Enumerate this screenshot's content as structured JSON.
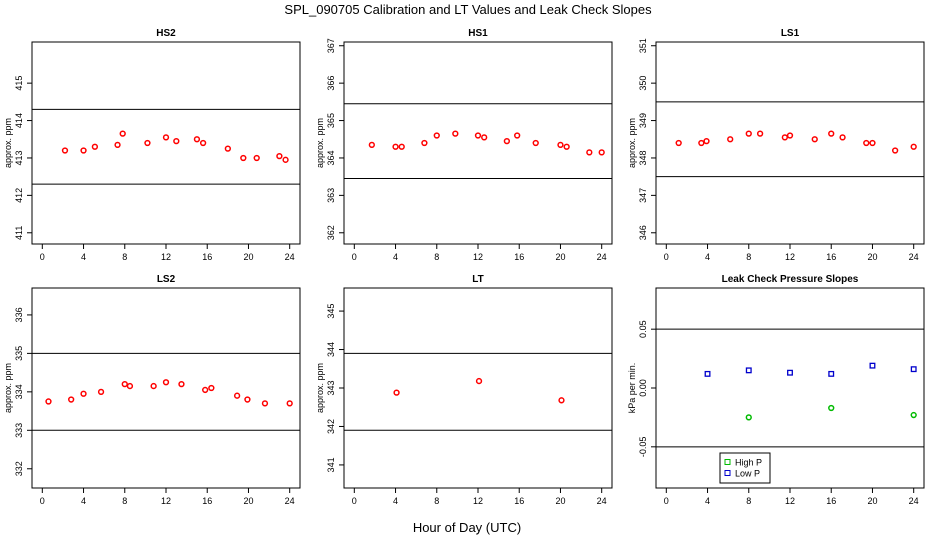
{
  "figure": {
    "title": "SPL_090705  Calibration and LT Values and Leak Check Slopes",
    "xlabel": "Hour of Day (UTC)"
  },
  "colors": {
    "cal": "#ff0000",
    "high": "#00bb00",
    "low": "#0000cc",
    "axis": "#000000"
  },
  "chart_data": [
    {
      "type": "scatter",
      "title": "HS2",
      "ylabel": "approx. ppm",
      "xlim": [
        -1,
        25
      ],
      "ylim": [
        410.7,
        416.1
      ],
      "xticks": [
        0,
        4,
        8,
        12,
        16,
        20,
        24
      ],
      "yticks": [
        411,
        412,
        413,
        414,
        415
      ],
      "hlines": [
        414.3,
        412.3
      ],
      "series": [
        {
          "name": "cal",
          "color": "#ff0000",
          "x": [
            2.2,
            4,
            5.1,
            7.3,
            7.8,
            10.2,
            12,
            13,
            15,
            15.6,
            18,
            19.5,
            20.8,
            23,
            23.6
          ],
          "y": [
            413.2,
            413.2,
            413.3,
            413.35,
            413.65,
            413.4,
            413.55,
            413.45,
            413.5,
            413.4,
            413.25,
            413.0,
            413.0,
            413.05,
            412.95
          ]
        }
      ]
    },
    {
      "type": "scatter",
      "title": "HS1",
      "ylabel": "approx. ppm",
      "xlim": [
        -1,
        25
      ],
      "ylim": [
        361.7,
        367.1
      ],
      "xticks": [
        0,
        4,
        8,
        12,
        16,
        20,
        24
      ],
      "yticks": [
        362,
        363,
        364,
        365,
        366,
        367
      ],
      "hlines": [
        365.45,
        363.45
      ],
      "series": [
        {
          "name": "cal",
          "color": "#ff0000",
          "x": [
            1.7,
            4,
            4.6,
            6.8,
            8,
            9.8,
            12,
            12.6,
            14.8,
            15.8,
            17.6,
            20,
            20.6,
            22.8,
            24
          ],
          "y": [
            364.35,
            364.3,
            364.3,
            364.4,
            364.6,
            364.65,
            364.6,
            364.55,
            364.45,
            364.6,
            364.4,
            364.35,
            364.3,
            364.15,
            364.15
          ]
        }
      ]
    },
    {
      "type": "scatter",
      "title": "LS1",
      "ylabel": "approx. ppm",
      "xlim": [
        -1,
        25
      ],
      "ylim": [
        345.7,
        351.1
      ],
      "xticks": [
        0,
        4,
        8,
        12,
        16,
        20,
        24
      ],
      "yticks": [
        346,
        347,
        348,
        349,
        350,
        351
      ],
      "hlines": [
        349.5,
        347.5
      ],
      "series": [
        {
          "name": "cal",
          "color": "#ff0000",
          "x": [
            1.2,
            3.4,
            3.9,
            6.2,
            8,
            9.1,
            11.5,
            12,
            14.4,
            16,
            17.1,
            19.4,
            20,
            22.2,
            24
          ],
          "y": [
            348.4,
            348.4,
            348.45,
            348.5,
            348.65,
            348.65,
            348.55,
            348.6,
            348.5,
            348.65,
            348.55,
            348.4,
            348.4,
            348.2,
            348.3
          ]
        }
      ]
    },
    {
      "type": "scatter",
      "title": "LS2",
      "ylabel": "approx. ppm",
      "xlim": [
        -1,
        25
      ],
      "ylim": [
        331.5,
        336.7
      ],
      "xticks": [
        0,
        4,
        8,
        12,
        16,
        20,
        24
      ],
      "yticks": [
        332,
        333,
        334,
        335,
        336
      ],
      "hlines": [
        335.0,
        333.0
      ],
      "series": [
        {
          "name": "cal",
          "color": "#ff0000",
          "x": [
            0.6,
            2.8,
            4,
            5.7,
            8,
            8.5,
            10.8,
            12,
            13.5,
            15.8,
            16.4,
            18.9,
            19.9,
            21.6,
            24
          ],
          "y": [
            333.75,
            333.8,
            333.95,
            334.0,
            334.2,
            334.15,
            334.15,
            334.25,
            334.2,
            334.05,
            334.1,
            333.9,
            333.8,
            333.7,
            333.7
          ]
        }
      ]
    },
    {
      "type": "scatter",
      "title": "LT",
      "ylabel": "approx. ppm",
      "xlim": [
        -1,
        25
      ],
      "ylim": [
        340.4,
        345.6
      ],
      "xticks": [
        0,
        4,
        8,
        12,
        16,
        20,
        24
      ],
      "yticks": [
        341,
        342,
        343,
        344,
        345
      ],
      "hlines": [
        343.9,
        341.9
      ],
      "series": [
        {
          "name": "cal",
          "color": "#ff0000",
          "x": [
            4.1,
            12.1,
            20.1
          ],
          "y": [
            342.88,
            343.18,
            342.68
          ]
        }
      ]
    },
    {
      "type": "scatter",
      "title": "Leak Check Pressure Slopes",
      "ylabel": "kPa per min.",
      "xlim": [
        -1,
        25
      ],
      "ylim": [
        -0.085,
        0.085
      ],
      "xticks": [
        0,
        4,
        8,
        12,
        16,
        20,
        24
      ],
      "yticks": [
        -0.05,
        0.0,
        0.05
      ],
      "ytick_labels": [
        "-0.05",
        "0.00",
        "0.05"
      ],
      "hlines": [
        0.05,
        -0.05
      ],
      "legend": {
        "position": "bottom-left",
        "entries": [
          "High P",
          "Low P"
        ]
      },
      "series": [
        {
          "name": "High P",
          "color": "#00bb00",
          "x": [
            8,
            16,
            24
          ],
          "y": [
            -0.025,
            -0.017,
            -0.023
          ]
        },
        {
          "name": "Low P",
          "color": "#0000cc",
          "x": [
            4,
            8,
            12,
            16,
            20,
            24
          ],
          "y": [
            0.012,
            0.015,
            0.013,
            0.012,
            0.019,
            0.016
          ]
        }
      ]
    }
  ]
}
